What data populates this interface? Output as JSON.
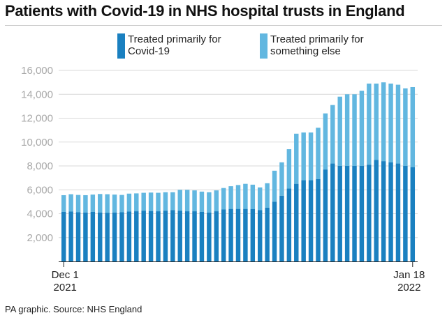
{
  "title": "Patients with Covid-19 in NHS hospital trusts in England",
  "source": "PA graphic. Source: NHS England",
  "colors": {
    "covid": "#1a80c0",
    "other": "#62b7e0",
    "grid": "#d9d9d9",
    "tick": "#a8a8a8"
  },
  "chart_data": {
    "type": "bar",
    "stacked": true,
    "title": "Patients with Covid-19 in NHS hospital trusts in England",
    "xlabel": "",
    "ylabel": "",
    "ylim": [
      0,
      16000
    ],
    "yticks": [
      "2,000",
      "4,000",
      "6,000",
      "8,000",
      "10,000",
      "12,000",
      "14,000",
      "16,000"
    ],
    "ytick_values": [
      2000,
      4000,
      6000,
      8000,
      10000,
      12000,
      14000,
      16000
    ],
    "x_start_label": [
      "Dec 1",
      "2021"
    ],
    "x_end_label": [
      "Jan 18",
      "2022"
    ],
    "categories": [
      "Dec 1",
      "Dec 2",
      "Dec 3",
      "Dec 4",
      "Dec 5",
      "Dec 6",
      "Dec 7",
      "Dec 8",
      "Dec 9",
      "Dec 10",
      "Dec 11",
      "Dec 12",
      "Dec 13",
      "Dec 14",
      "Dec 15",
      "Dec 16",
      "Dec 17",
      "Dec 18",
      "Dec 19",
      "Dec 20",
      "Dec 21",
      "Dec 22",
      "Dec 23",
      "Dec 24",
      "Dec 25",
      "Dec 26",
      "Dec 27",
      "Dec 28",
      "Dec 29",
      "Dec 30",
      "Dec 31",
      "Jan 1",
      "Jan 2",
      "Jan 3",
      "Jan 4",
      "Jan 5",
      "Jan 6",
      "Jan 7",
      "Jan 8",
      "Jan 9",
      "Jan 10",
      "Jan 11",
      "Jan 12",
      "Jan 13",
      "Jan 14",
      "Jan 15",
      "Jan 16",
      "Jan 17",
      "Jan 18"
    ],
    "series": [
      {
        "name": "Treated primarily for Covid-19",
        "values": [
          4150,
          4180,
          4120,
          4100,
          4150,
          4100,
          4080,
          4100,
          4120,
          4180,
          4200,
          4250,
          4220,
          4200,
          4250,
          4300,
          4250,
          4200,
          4200,
          4150,
          4100,
          4200,
          4350,
          4400,
          4400,
          4400,
          4380,
          4300,
          4500,
          5000,
          5500,
          6100,
          6500,
          6800,
          6800,
          6900,
          7700,
          8200,
          8000,
          8000,
          8000,
          8000,
          8100,
          8500,
          8400,
          8300,
          8200,
          8000,
          7900
        ]
      },
      {
        "name": "Treated primarily for something else",
        "values": [
          1400,
          1450,
          1450,
          1450,
          1450,
          1550,
          1550,
          1500,
          1450,
          1500,
          1500,
          1500,
          1550,
          1550,
          1550,
          1500,
          1750,
          1800,
          1750,
          1700,
          1700,
          1750,
          1800,
          1900,
          2000,
          2100,
          2050,
          1900,
          2050,
          2600,
          2800,
          3300,
          4200,
          4000,
          4000,
          4300,
          4700,
          4900,
          5800,
          6000,
          6000,
          6300,
          6800,
          6400,
          6600,
          6600,
          6600,
          6500,
          6700
        ]
      }
    ]
  }
}
